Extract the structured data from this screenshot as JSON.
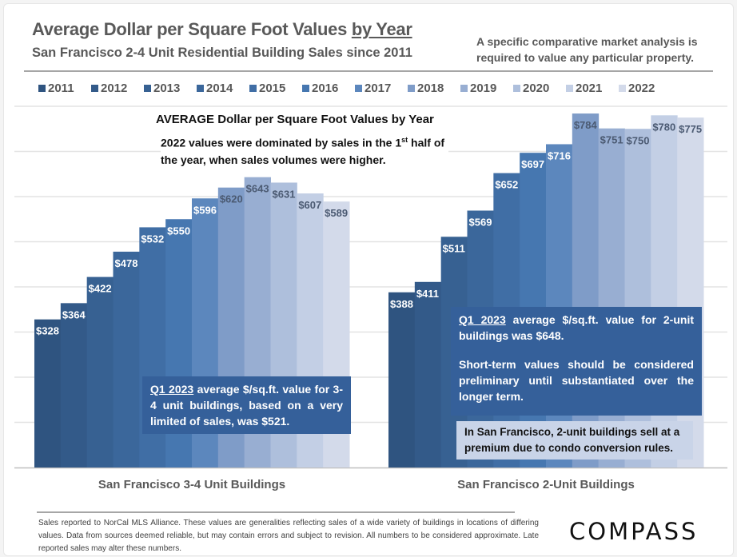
{
  "header": {
    "title_main": "Average Dollar per Square Foot Values ",
    "title_underlined": "by Year",
    "subtitle": "San Francisco 2-4 Unit Residential Building Sales since 2011",
    "disclaimer": "A specific comparative market analysis is required to value any particular property."
  },
  "chart_annotations": {
    "title": "AVERAGE Dollar per Square Foot Values by Year",
    "note_pre": "2022 values were dominated by sales in the 1",
    "note_sup": "st",
    "note_post": " half of the year, when sales volumes were higher."
  },
  "callouts": {
    "left": {
      "lead": "Q1 2023",
      "text": " average $/sq.ft. value for 3-4 unit buildings, based on a very limited of sales, was $521."
    },
    "right": {
      "lead": "Q1 2023",
      "text": " average $/sq.ft. value for 2-unit buildings was $648.",
      "text2": "Short-term values should be considered preliminary until substantiated over the longer term."
    },
    "premium_note": "In San Francisco, 2-unit buildings sell at a premium due to condo conversion rules."
  },
  "footer": {
    "text": "Sales reported to NorCal MLS Alliance. These values are generalities reflecting sales of a wide variety of buildings in locations of differing values. Data from sources deemed reliable, but may contain errors and subject to revision. All numbers to be considered approximate. Late reported sales may alter these numbers.",
    "logo": "COMPASS"
  },
  "chart_data": {
    "type": "bar",
    "title": "Average Dollar per Square Foot Values by Year",
    "xlabel": "",
    "ylabel": "",
    "ylim": [
      0,
      800
    ],
    "grid": true,
    "legend_position": "top",
    "categories": [
      "San Francisco 3-4 Unit Buildings",
      "San Francisco 2-Unit Buildings"
    ],
    "series": [
      {
        "name": "2011",
        "color": "#2f5480",
        "values": [
          328,
          388
        ]
      },
      {
        "name": "2012",
        "color": "#335a89",
        "values": [
          364,
          411
        ]
      },
      {
        "name": "2013",
        "color": "#376192",
        "values": [
          422,
          511
        ]
      },
      {
        "name": "2014",
        "color": "#3b679b",
        "values": [
          478,
          569
        ]
      },
      {
        "name": "2015",
        "color": "#406ea5",
        "values": [
          532,
          652
        ]
      },
      {
        "name": "2016",
        "color": "#4677b0",
        "values": [
          550,
          697
        ]
      },
      {
        "name": "2017",
        "color": "#5c87bd",
        "values": [
          596,
          716
        ]
      },
      {
        "name": "2018",
        "color": "#7f9cc8",
        "values": [
          620,
          784
        ]
      },
      {
        "name": "2019",
        "color": "#98aed2",
        "values": [
          643,
          751
        ]
      },
      {
        "name": "2020",
        "color": "#aebfdc",
        "values": [
          631,
          750
        ]
      },
      {
        "name": "2021",
        "color": "#c3cfe5",
        "values": [
          607,
          780
        ]
      },
      {
        "name": "2022",
        "color": "#d3daea",
        "values": [
          589,
          775
        ]
      }
    ],
    "label_prefix": "$"
  }
}
